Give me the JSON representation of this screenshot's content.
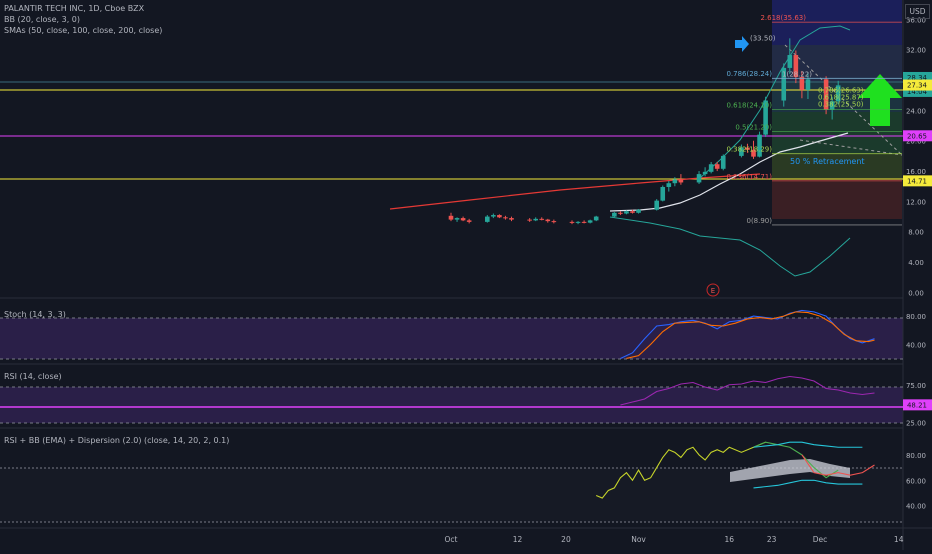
{
  "symbol_line": "PALANTIR TECH INC, 1D, Cboe BZX",
  "indicators_main": [
    "BB (20, close, 3, 0)",
    "SMAs (50, close, 100, close, 200, close)"
  ],
  "currency": "USD",
  "colors": {
    "up": "#26a69a",
    "down": "#ef5350",
    "bg": "#131722",
    "grid": "#1e222d"
  },
  "chart_data": [
    {
      "type": "candlestick",
      "title": "PALANTIR TECH INC, 1D, Cboe BZX",
      "y_ticks": [
        0,
        4,
        8,
        12,
        16,
        20,
        24,
        28,
        32,
        36
      ],
      "y_tick_labels": [
        "0.00",
        "4.00",
        "8.00",
        "12.00",
        "16.00",
        "20.00",
        "24.00",
        "28.00",
        "32.00",
        "36.00"
      ],
      "ylim": [
        -1,
        37.5
      ],
      "x_ticks": [
        {
          "label": "Oct",
          "day": 0
        },
        {
          "label": "12",
          "day": 11
        },
        {
          "label": "20",
          "day": 19
        },
        {
          "label": "Nov",
          "day": 31
        },
        {
          "label": "16",
          "day": 46
        },
        {
          "label": "23",
          "day": 53
        },
        {
          "label": "Dec",
          "day": 61
        },
        {
          "label": "14",
          "day": 74
        }
      ],
      "candles": [
        [
          0,
          10.1,
          10.5,
          9.4,
          9.6
        ],
        [
          1,
          9.6,
          9.9,
          9.3,
          9.8
        ],
        [
          2,
          9.8,
          10.0,
          9.4,
          9.5
        ],
        [
          3,
          9.5,
          9.7,
          9.1,
          9.3
        ],
        [
          6,
          9.3,
          10.2,
          9.2,
          10.0
        ],
        [
          7,
          10.0,
          10.4,
          9.8,
          10.2
        ],
        [
          8,
          10.2,
          10.3,
          9.8,
          9.9
        ],
        [
          9,
          9.9,
          10.1,
          9.6,
          9.8
        ],
        [
          10,
          9.8,
          10.0,
          9.4,
          9.6
        ],
        [
          13,
          9.6,
          9.8,
          9.3,
          9.5
        ],
        [
          14,
          9.5,
          9.9,
          9.4,
          9.7
        ],
        [
          15,
          9.7,
          9.9,
          9.5,
          9.6
        ],
        [
          16,
          9.6,
          9.7,
          9.2,
          9.4
        ],
        [
          17,
          9.4,
          9.6,
          9.1,
          9.3
        ],
        [
          20,
          9.3,
          9.5,
          9.0,
          9.2
        ],
        [
          21,
          9.2,
          9.4,
          9.0,
          9.3
        ],
        [
          22,
          9.3,
          9.5,
          9.1,
          9.2
        ],
        [
          23,
          9.2,
          9.6,
          9.1,
          9.5
        ],
        [
          24,
          9.5,
          10.1,
          9.4,
          10.0
        ],
        [
          27,
          10.0,
          10.6,
          9.9,
          10.5
        ],
        [
          28,
          10.5,
          10.7,
          10.2,
          10.4
        ],
        [
          29,
          10.4,
          10.8,
          10.3,
          10.7
        ],
        [
          30,
          10.7,
          10.9,
          10.4,
          10.5
        ],
        [
          31,
          10.5,
          11.0,
          10.4,
          10.9
        ],
        [
          34,
          10.9,
          12.3,
          10.8,
          12.1
        ],
        [
          35,
          12.1,
          14.1,
          12.0,
          13.9
        ],
        [
          36,
          13.9,
          14.7,
          13.3,
          14.4
        ],
        [
          37,
          14.4,
          15.2,
          14.0,
          14.9
        ],
        [
          38,
          14.9,
          15.6,
          14.2,
          14.5
        ],
        [
          41,
          14.5,
          16.0,
          14.3,
          15.6
        ],
        [
          42,
          15.6,
          16.5,
          15.3,
          15.9
        ],
        [
          43,
          15.9,
          17.2,
          15.7,
          16.9
        ],
        [
          44,
          16.9,
          17.2,
          16.0,
          16.3
        ],
        [
          45,
          16.3,
          18.2,
          16.1,
          18.0
        ],
        [
          48,
          18.0,
          19.5,
          17.8,
          19.1
        ],
        [
          49,
          19.1,
          19.6,
          18.4,
          18.8
        ],
        [
          50,
          18.8,
          20.0,
          17.6,
          17.9
        ],
        [
          51,
          17.9,
          21.2,
          17.8,
          20.8
        ],
        [
          52,
          20.8,
          25.8,
          20.5,
          25.3
        ],
        [
          55,
          25.3,
          30.2,
          24.5,
          29.6
        ],
        [
          56,
          29.6,
          33.5,
          28.8,
          31.3
        ],
        [
          57,
          31.3,
          31.9,
          27.6,
          28.4
        ],
        [
          58,
          28.4,
          29.2,
          25.6,
          26.7
        ],
        [
          59,
          26.7,
          29.0,
          25.5,
          28.1
        ],
        [
          62,
          28.1,
          28.5,
          23.5,
          24.1
        ],
        [
          63,
          24.1,
          25.8,
          22.8,
          25.2
        ],
        [
          64,
          25.2,
          27.9,
          24.8,
          27.3
        ]
      ],
      "price_labels": [
        {
          "text": "28.34",
          "value": 28.34,
          "color": "#26a69a"
        },
        {
          "text": "14:04",
          "value": 26.5,
          "color": "#26a69a"
        },
        {
          "text": "27.34",
          "value": 27.34,
          "color": "#f5eb3b"
        },
        {
          "text": "20.65",
          "value": 20.65,
          "color": "#e040fb"
        },
        {
          "text": "14.71",
          "value": 14.71,
          "color": "#f5eb3b"
        }
      ],
      "fib_levels": [
        {
          "label": "2.618(35.63)",
          "value": 35.63,
          "color": "#ef5350"
        },
        {
          "label": "1(28.22)",
          "value": 28.22,
          "color": "#b2b5be"
        },
        {
          "label": "0.786(28.24)",
          "value": 28.24,
          "color": "#5fa8d3"
        },
        {
          "label": "0.618(24.10)",
          "value": 24.1,
          "color": "#4caf50"
        },
        {
          "label": "0.5(21.20)",
          "value": 21.2,
          "color": "#4caf50"
        },
        {
          "label": "0.382(18.29)",
          "value": 18.29,
          "color": "#a8d84e"
        },
        {
          "label": "0.236(14.71)",
          "value": 14.71,
          "color": "#ef5350"
        },
        {
          "label": "0(8.90)",
          "value": 8.9,
          "color": "#9e9e9e"
        }
      ],
      "fib_inner_labels": [
        "0.786(26.63)",
        "0.618(25.87)",
        "0.382(25.50)"
      ],
      "retracement_label": "50 % Retracement",
      "arrow_label": "(33.50)",
      "earnings_marker": "E"
    },
    {
      "type": "line",
      "name": "Stoch (14, 3, 3)",
      "y_ticks": [
        40,
        80
      ],
      "y_tick_labels": [
        "40.00",
        "80.00"
      ],
      "ylim": [
        15,
        100
      ],
      "series": [
        {
          "color": "#2962ff",
          "values": [
            [
              28,
              20
            ],
            [
              30,
              28
            ],
            [
              32,
              48
            ],
            [
              34,
              66
            ],
            [
              36,
              68
            ],
            [
              38,
              72
            ],
            [
              40,
              74
            ],
            [
              42,
              70
            ],
            [
              44,
              62
            ],
            [
              46,
              72
            ],
            [
              48,
              74
            ],
            [
              50,
              80
            ],
            [
              52,
              78
            ],
            [
              54,
              76
            ],
            [
              56,
              84
            ],
            [
              58,
              88
            ],
            [
              60,
              86
            ],
            [
              62,
              80
            ],
            [
              64,
              62
            ],
            [
              66,
              48
            ],
            [
              68,
              42
            ],
            [
              70,
              48
            ]
          ]
        },
        {
          "color": "#ff6d00",
          "values": [
            [
              29,
              20
            ],
            [
              31,
              24
            ],
            [
              33,
              40
            ],
            [
              35,
              58
            ],
            [
              37,
              70
            ],
            [
              39,
              71
            ],
            [
              41,
              72
            ],
            [
              43,
              67
            ],
            [
              45,
              66
            ],
            [
              47,
              70
            ],
            [
              49,
              76
            ],
            [
              51,
              78
            ],
            [
              53,
              76
            ],
            [
              55,
              80
            ],
            [
              57,
              86
            ],
            [
              59,
              85
            ],
            [
              61,
              80
            ],
            [
              63,
              70
            ],
            [
              65,
              54
            ],
            [
              67,
              45
            ],
            [
              69,
              44
            ],
            [
              70,
              46
            ]
          ]
        }
      ]
    },
    {
      "type": "line",
      "name": "RSI (14, close)",
      "y_ticks": [
        25,
        75
      ],
      "y_tick_labels": [
        "25.00",
        "75.00"
      ],
      "ylim": [
        20,
        100
      ],
      "value_label": "48.21",
      "series": [
        {
          "color": "#9c27b0",
          "values": [
            [
              28,
              48
            ],
            [
              30,
              52
            ],
            [
              32,
              56
            ],
            [
              34,
              66
            ],
            [
              36,
              70
            ],
            [
              38,
              76
            ],
            [
              40,
              78
            ],
            [
              42,
              72
            ],
            [
              44,
              68
            ],
            [
              46,
              75
            ],
            [
              48,
              76
            ],
            [
              50,
              80
            ],
            [
              52,
              78
            ],
            [
              54,
              83
            ],
            [
              56,
              86
            ],
            [
              58,
              84
            ],
            [
              60,
              80
            ],
            [
              62,
              70
            ],
            [
              64,
              68
            ],
            [
              66,
              64
            ],
            [
              68,
              62
            ],
            [
              70,
              64
            ]
          ]
        }
      ]
    },
    {
      "type": "line",
      "name": "RSI + BB (EMA) + Dispersion (2.0) (close, 14, 20, 2, 0.1)",
      "y_ticks": [
        40,
        60,
        80
      ],
      "y_tick_labels": [
        "40.00",
        "60.00",
        "80.00"
      ],
      "ylim": [
        24,
        98
      ],
      "series": [
        {
          "color": "#c6d42a",
          "values": [
            [
              24,
              48
            ],
            [
              25,
              46
            ],
            [
              26,
              52
            ],
            [
              27,
              54
            ],
            [
              28,
              62
            ],
            [
              29,
              66
            ],
            [
              30,
              60
            ],
            [
              31,
              68
            ],
            [
              32,
              60
            ],
            [
              33,
              62
            ],
            [
              34,
              70
            ],
            [
              35,
              78
            ],
            [
              36,
              84
            ],
            [
              37,
              82
            ],
            [
              38,
              78
            ],
            [
              39,
              84
            ],
            [
              40,
              86
            ],
            [
              41,
              80
            ],
            [
              42,
              76
            ],
            [
              43,
              82
            ],
            [
              44,
              84
            ],
            [
              45,
              82
            ],
            [
              46,
              86
            ],
            [
              48,
              82
            ],
            [
              50,
              86
            ],
            [
              52,
              90
            ]
          ]
        },
        {
          "color": "#4caf50",
          "values": [
            [
              50,
              86
            ],
            [
              52,
              90
            ],
            [
              54,
              88
            ],
            [
              56,
              86
            ],
            [
              58,
              80
            ],
            [
              60,
              70
            ],
            [
              62,
              62
            ],
            [
              64,
              68
            ]
          ]
        },
        {
          "color": "#ef5350",
          "values": [
            [
              58,
              80
            ],
            [
              60,
              66
            ],
            [
              62,
              64
            ],
            [
              64,
              66
            ],
            [
              66,
              64
            ],
            [
              68,
              66
            ],
            [
              70,
              72
            ]
          ]
        },
        {
          "color": "#26c6da",
          "values": [
            [
              50,
              86
            ],
            [
              52,
              87
            ],
            [
              54,
              88
            ],
            [
              56,
              90
            ],
            [
              58,
              90
            ],
            [
              60,
              88
            ],
            [
              62,
              87
            ],
            [
              64,
              86
            ],
            [
              66,
              86
            ],
            [
              68,
              86
            ]
          ]
        },
        {
          "color": "#26c6da",
          "values": [
            [
              50,
              54
            ],
            [
              52,
              55
            ],
            [
              54,
              56
            ],
            [
              56,
              58
            ],
            [
              58,
              60
            ],
            [
              60,
              60
            ],
            [
              62,
              58
            ],
            [
              64,
              57
            ],
            [
              66,
              57
            ],
            [
              68,
              57
            ]
          ]
        }
      ]
    }
  ]
}
